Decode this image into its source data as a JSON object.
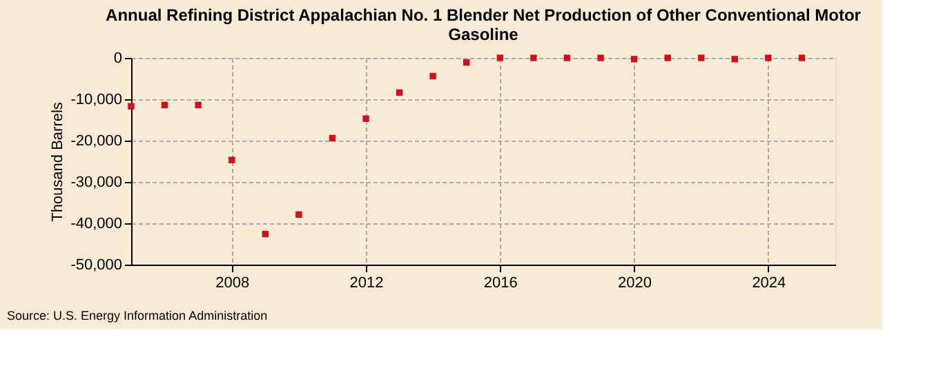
{
  "chart_data": {
    "type": "scatter",
    "title": "Annual Refining District Appalachian No. 1 Blender Net Production of Other Conventional Motor Gasoline",
    "ylabel": "Thousand Barrels",
    "x": [
      2005,
      2006,
      2007,
      2008,
      2009,
      2010,
      2011,
      2012,
      2013,
      2014,
      2015,
      2016,
      2017,
      2018,
      2019,
      2020,
      2021,
      2022,
      2023,
      2024,
      2025
    ],
    "series": [
      {
        "color": "#d0101c",
        "values": [
          -11700,
          -11400,
          -11400,
          -24700,
          -42600,
          -37900,
          -19400,
          -14700,
          -8400,
          -4400,
          -1100,
          0,
          0,
          0,
          0,
          -300,
          0,
          0,
          -300,
          0,
          0
        ]
      }
    ],
    "xlim": [
      2005,
      2026
    ],
    "xticks": [
      2008,
      2012,
      2016,
      2020,
      2024
    ],
    "ylim": [
      -50000,
      0
    ],
    "yticks": [
      {
        "value": -50000,
        "label": "-50,000"
      },
      {
        "value": -40000,
        "label": "-40,000"
      },
      {
        "value": -30000,
        "label": "-30,000"
      },
      {
        "value": -20000,
        "label": "-20,000"
      },
      {
        "value": -10000,
        "label": "-10,000"
      },
      0
    ],
    "grid": true,
    "marker": "square",
    "annotations": [
      "Source: U.S. Energy Information Administration"
    ]
  }
}
